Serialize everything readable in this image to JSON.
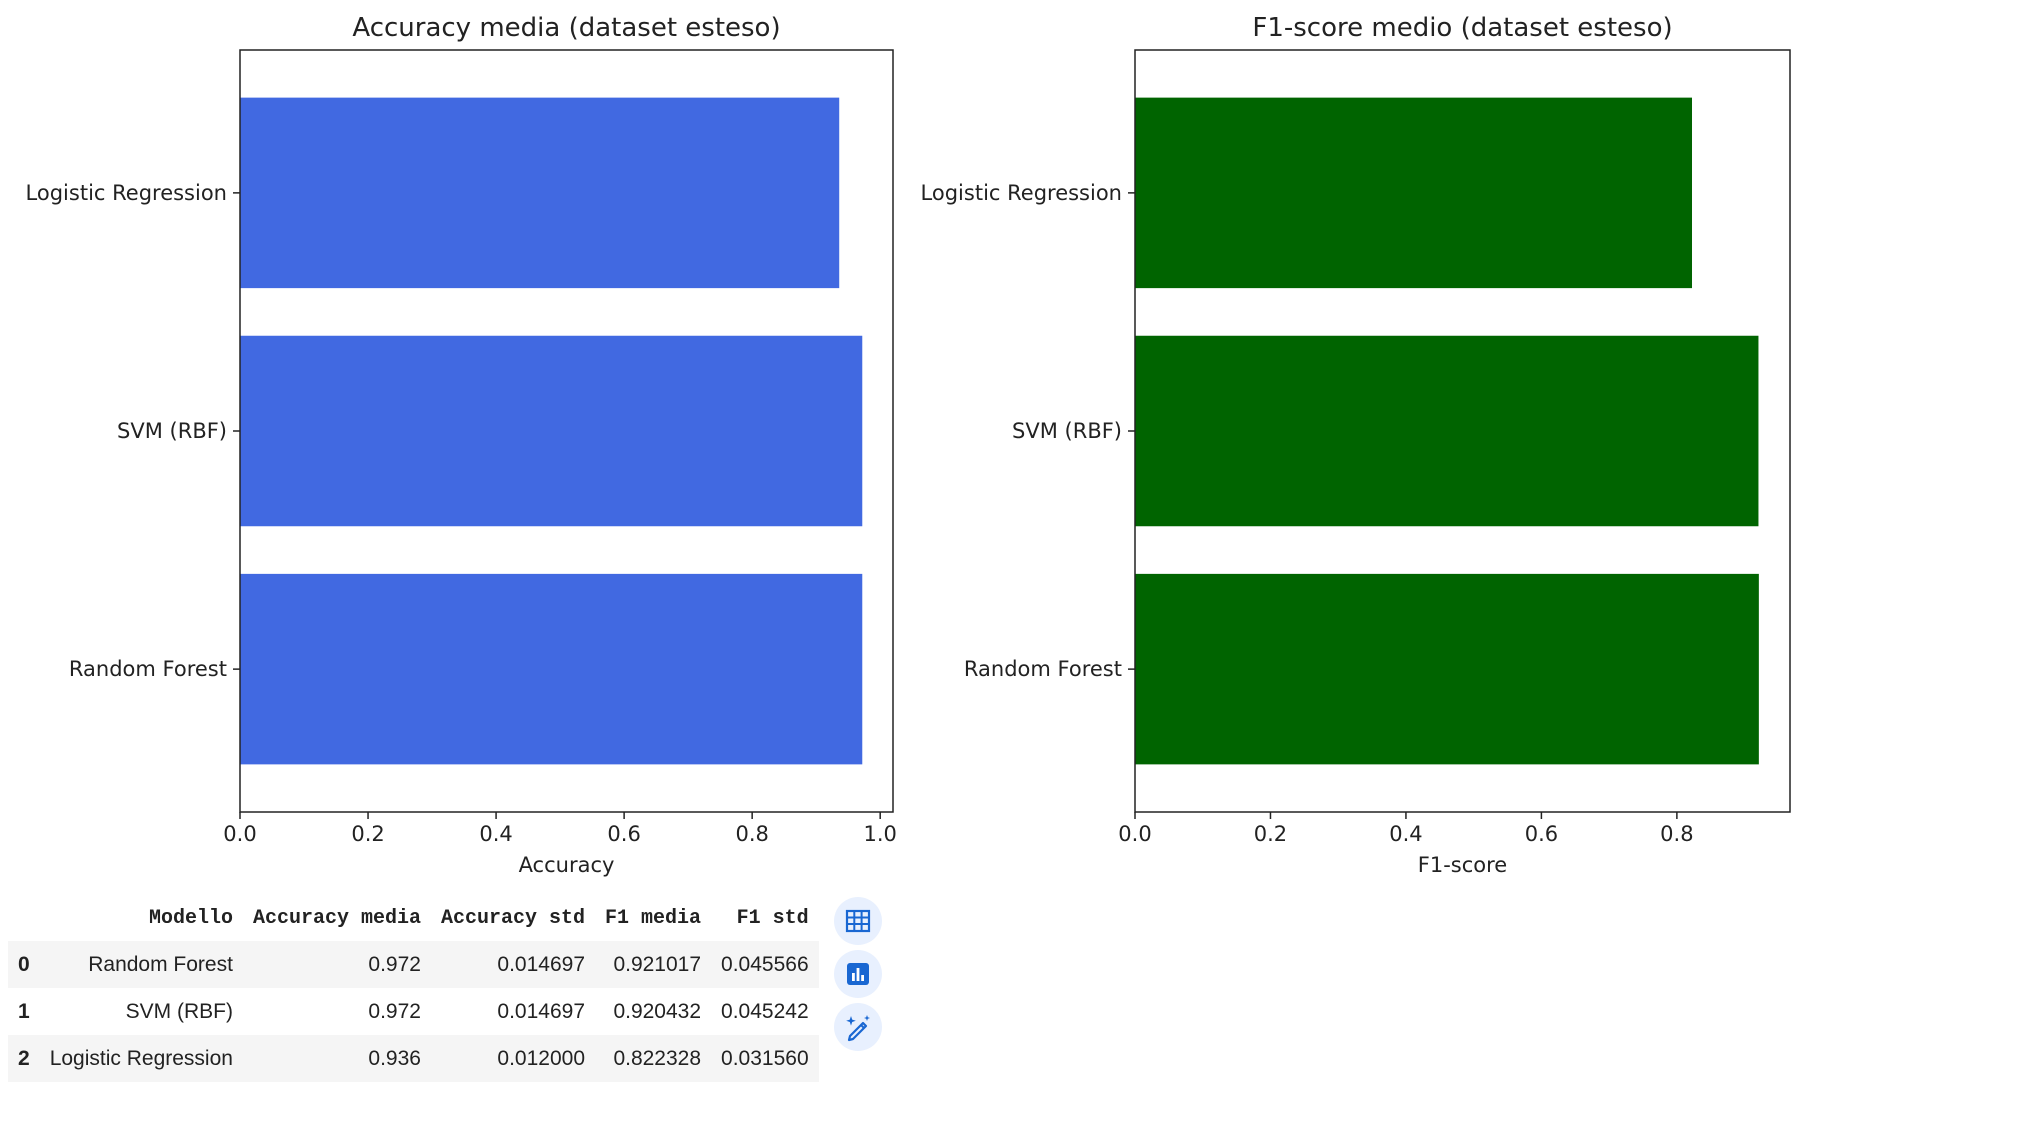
{
  "chart_data": [
    {
      "type": "bar",
      "orientation": "horizontal",
      "title": "Accuracy media (dataset esteso)",
      "xlabel": "Accuracy",
      "ylabel": "",
      "categories": [
        "Random Forest",
        "SVM (RBF)",
        "Logistic Regression"
      ],
      "values": [
        0.972,
        0.972,
        0.936
      ],
      "xlim": [
        0,
        1.02
      ],
      "xticks": [
        "0.0",
        "0.2",
        "0.4",
        "0.6",
        "0.8",
        "1.0"
      ],
      "color": "#4169e1",
      "grid": false
    },
    {
      "type": "bar",
      "orientation": "horizontal",
      "title": "F1-score medio (dataset esteso)",
      "xlabel": "F1-score",
      "ylabel": "",
      "categories": [
        "Random Forest",
        "SVM (RBF)",
        "Logistic Regression"
      ],
      "values": [
        0.921017,
        0.920432,
        0.822328
      ],
      "xlim": [
        0,
        0.967
      ],
      "xticks": [
        "0.0",
        "0.2",
        "0.4",
        "0.6",
        "0.8"
      ],
      "color": "#006400",
      "grid": false
    }
  ],
  "table": {
    "columns": [
      "",
      "Modello",
      "Accuracy media",
      "Accuracy std",
      "F1 media",
      "F1 std"
    ],
    "rows": [
      [
        "0",
        "Random Forest",
        "0.972",
        "0.014697",
        "0.921017",
        "0.045566"
      ],
      [
        "1",
        "SVM (RBF)",
        "0.972",
        "0.014697",
        "0.920432",
        "0.045242"
      ],
      [
        "2",
        "Logistic Regression",
        "0.936",
        "0.012000",
        "0.822328",
        "0.031560"
      ]
    ]
  },
  "toolbar": {
    "buttons": [
      "table-icon",
      "chart-icon",
      "magic-wand-icon"
    ],
    "accent": "#1967d2"
  }
}
